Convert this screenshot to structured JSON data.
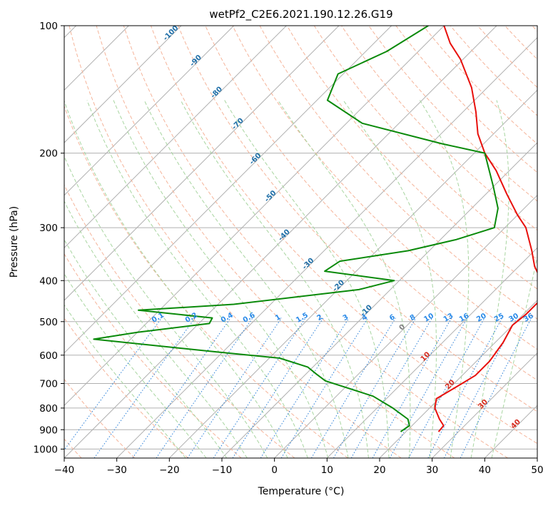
{
  "chart_data": {
    "type": "line",
    "subtype": "skew-t log-p diagram",
    "title": "wetPf2_C2E6.2021.190.12.26.G19",
    "xlabel": "Temperature (°C)",
    "ylabel": "Pressure (hPa)",
    "xlim": [
      -40,
      50
    ],
    "ylim": [
      1050,
      100
    ],
    "y_scale": "log",
    "grid": true,
    "x_ticks": [
      -40,
      -30,
      -20,
      -10,
      0,
      10,
      20,
      30,
      40,
      50
    ],
    "y_ticks": [
      100,
      200,
      300,
      400,
      500,
      600,
      700,
      800,
      900,
      1000
    ],
    "skew_isotherm_labels": [
      "-100",
      "-90",
      "-80",
      "-70",
      "-60",
      "-50",
      "-40",
      "-30",
      "-20",
      "-10",
      "0",
      "10",
      "20",
      "30",
      "40"
    ],
    "mixing_ratio_labels": [
      "0.1",
      "0.2",
      "0.4",
      "0.6",
      "1",
      "1.5",
      "2",
      "3",
      "4",
      "6",
      "8",
      "10",
      "13",
      "16",
      "20",
      "25",
      "30",
      "36"
    ],
    "colors": {
      "temperature": "#e8100c",
      "dewpoint": "#0a8a0a",
      "grid": "#b0b0b0",
      "dry_adiabat": "#f5b49a",
      "moist_adiabat": "#a8d5a0",
      "mixing_ratio": "#2a7fd8",
      "mixing_ratio_label": "#2a8ae8",
      "isotherm_label_cold": "#1f6fa8",
      "isotherm_label_warm": "#d62d20",
      "isotherm_label_zero": "#808080",
      "tan_curve": "#d8c0a0"
    },
    "series": [
      {
        "name": "Temperature",
        "points": [
          {
            "p": 910,
            "t": 26.2
          },
          {
            "p": 880,
            "t": 26.0
          },
          {
            "p": 850,
            "t": 24.0
          },
          {
            "p": 800,
            "t": 21.0
          },
          {
            "p": 760,
            "t": 19.5
          },
          {
            "p": 730,
            "t": 20.5
          },
          {
            "p": 700,
            "t": 21.5
          },
          {
            "p": 670,
            "t": 22.5
          },
          {
            "p": 620,
            "t": 22.5
          },
          {
            "p": 560,
            "t": 21.5
          },
          {
            "p": 510,
            "t": 20.0
          },
          {
            "p": 480,
            "t": 20.5
          },
          {
            "p": 450,
            "t": 20.5
          },
          {
            "p": 430,
            "t": 19.5
          },
          {
            "p": 400,
            "t": 17.0
          },
          {
            "p": 370,
            "t": 13.0
          },
          {
            "p": 340,
            "t": 9.5
          },
          {
            "p": 300,
            "t": 4.0
          },
          {
            "p": 280,
            "t": 0.0
          },
          {
            "p": 250,
            "t": -6.0
          },
          {
            "p": 220,
            "t": -12.5
          },
          {
            "p": 200,
            "t": -18.0
          },
          {
            "p": 180,
            "t": -23.0
          },
          {
            "p": 160,
            "t": -27.5
          },
          {
            "p": 140,
            "t": -33.0
          },
          {
            "p": 120,
            "t": -40.5
          },
          {
            "p": 110,
            "t": -45.5
          },
          {
            "p": 100,
            "t": -50.0
          }
        ]
      },
      {
        "name": "Dewpoint",
        "points": [
          {
            "p": 910,
            "t": 19.0
          },
          {
            "p": 880,
            "t": 19.5
          },
          {
            "p": 850,
            "t": 18.0
          },
          {
            "p": 800,
            "t": 13.0
          },
          {
            "p": 750,
            "t": 7.0
          },
          {
            "p": 690,
            "t": -5.0
          },
          {
            "p": 665,
            "t": -8.0
          },
          {
            "p": 640,
            "t": -11.0
          },
          {
            "p": 610,
            "t": -18.0
          },
          {
            "p": 590,
            "t": -31.0
          },
          {
            "p": 550,
            "t": -57.0
          },
          {
            "p": 530,
            "t": -50.0
          },
          {
            "p": 505,
            "t": -38.0
          },
          {
            "p": 490,
            "t": -38.5
          },
          {
            "p": 470,
            "t": -54.0
          },
          {
            "p": 455,
            "t": -37.0
          },
          {
            "p": 420,
            "t": -16.0
          },
          {
            "p": 400,
            "t": -11.0
          },
          {
            "p": 380,
            "t": -26.0
          },
          {
            "p": 360,
            "t": -25.0
          },
          {
            "p": 340,
            "t": -14.0
          },
          {
            "p": 320,
            "t": -7.0
          },
          {
            "p": 300,
            "t": -2.0
          },
          {
            "p": 270,
            "t": -5.0
          },
          {
            "p": 240,
            "t": -10.0
          },
          {
            "p": 200,
            "t": -18.0
          },
          {
            "p": 190,
            "t": -28.0
          },
          {
            "p": 170,
            "t": -47.0
          },
          {
            "p": 150,
            "t": -58.0
          },
          {
            "p": 130,
            "t": -61.0
          },
          {
            "p": 115,
            "t": -56.0
          },
          {
            "p": 100,
            "t": -53.0
          }
        ]
      }
    ]
  }
}
